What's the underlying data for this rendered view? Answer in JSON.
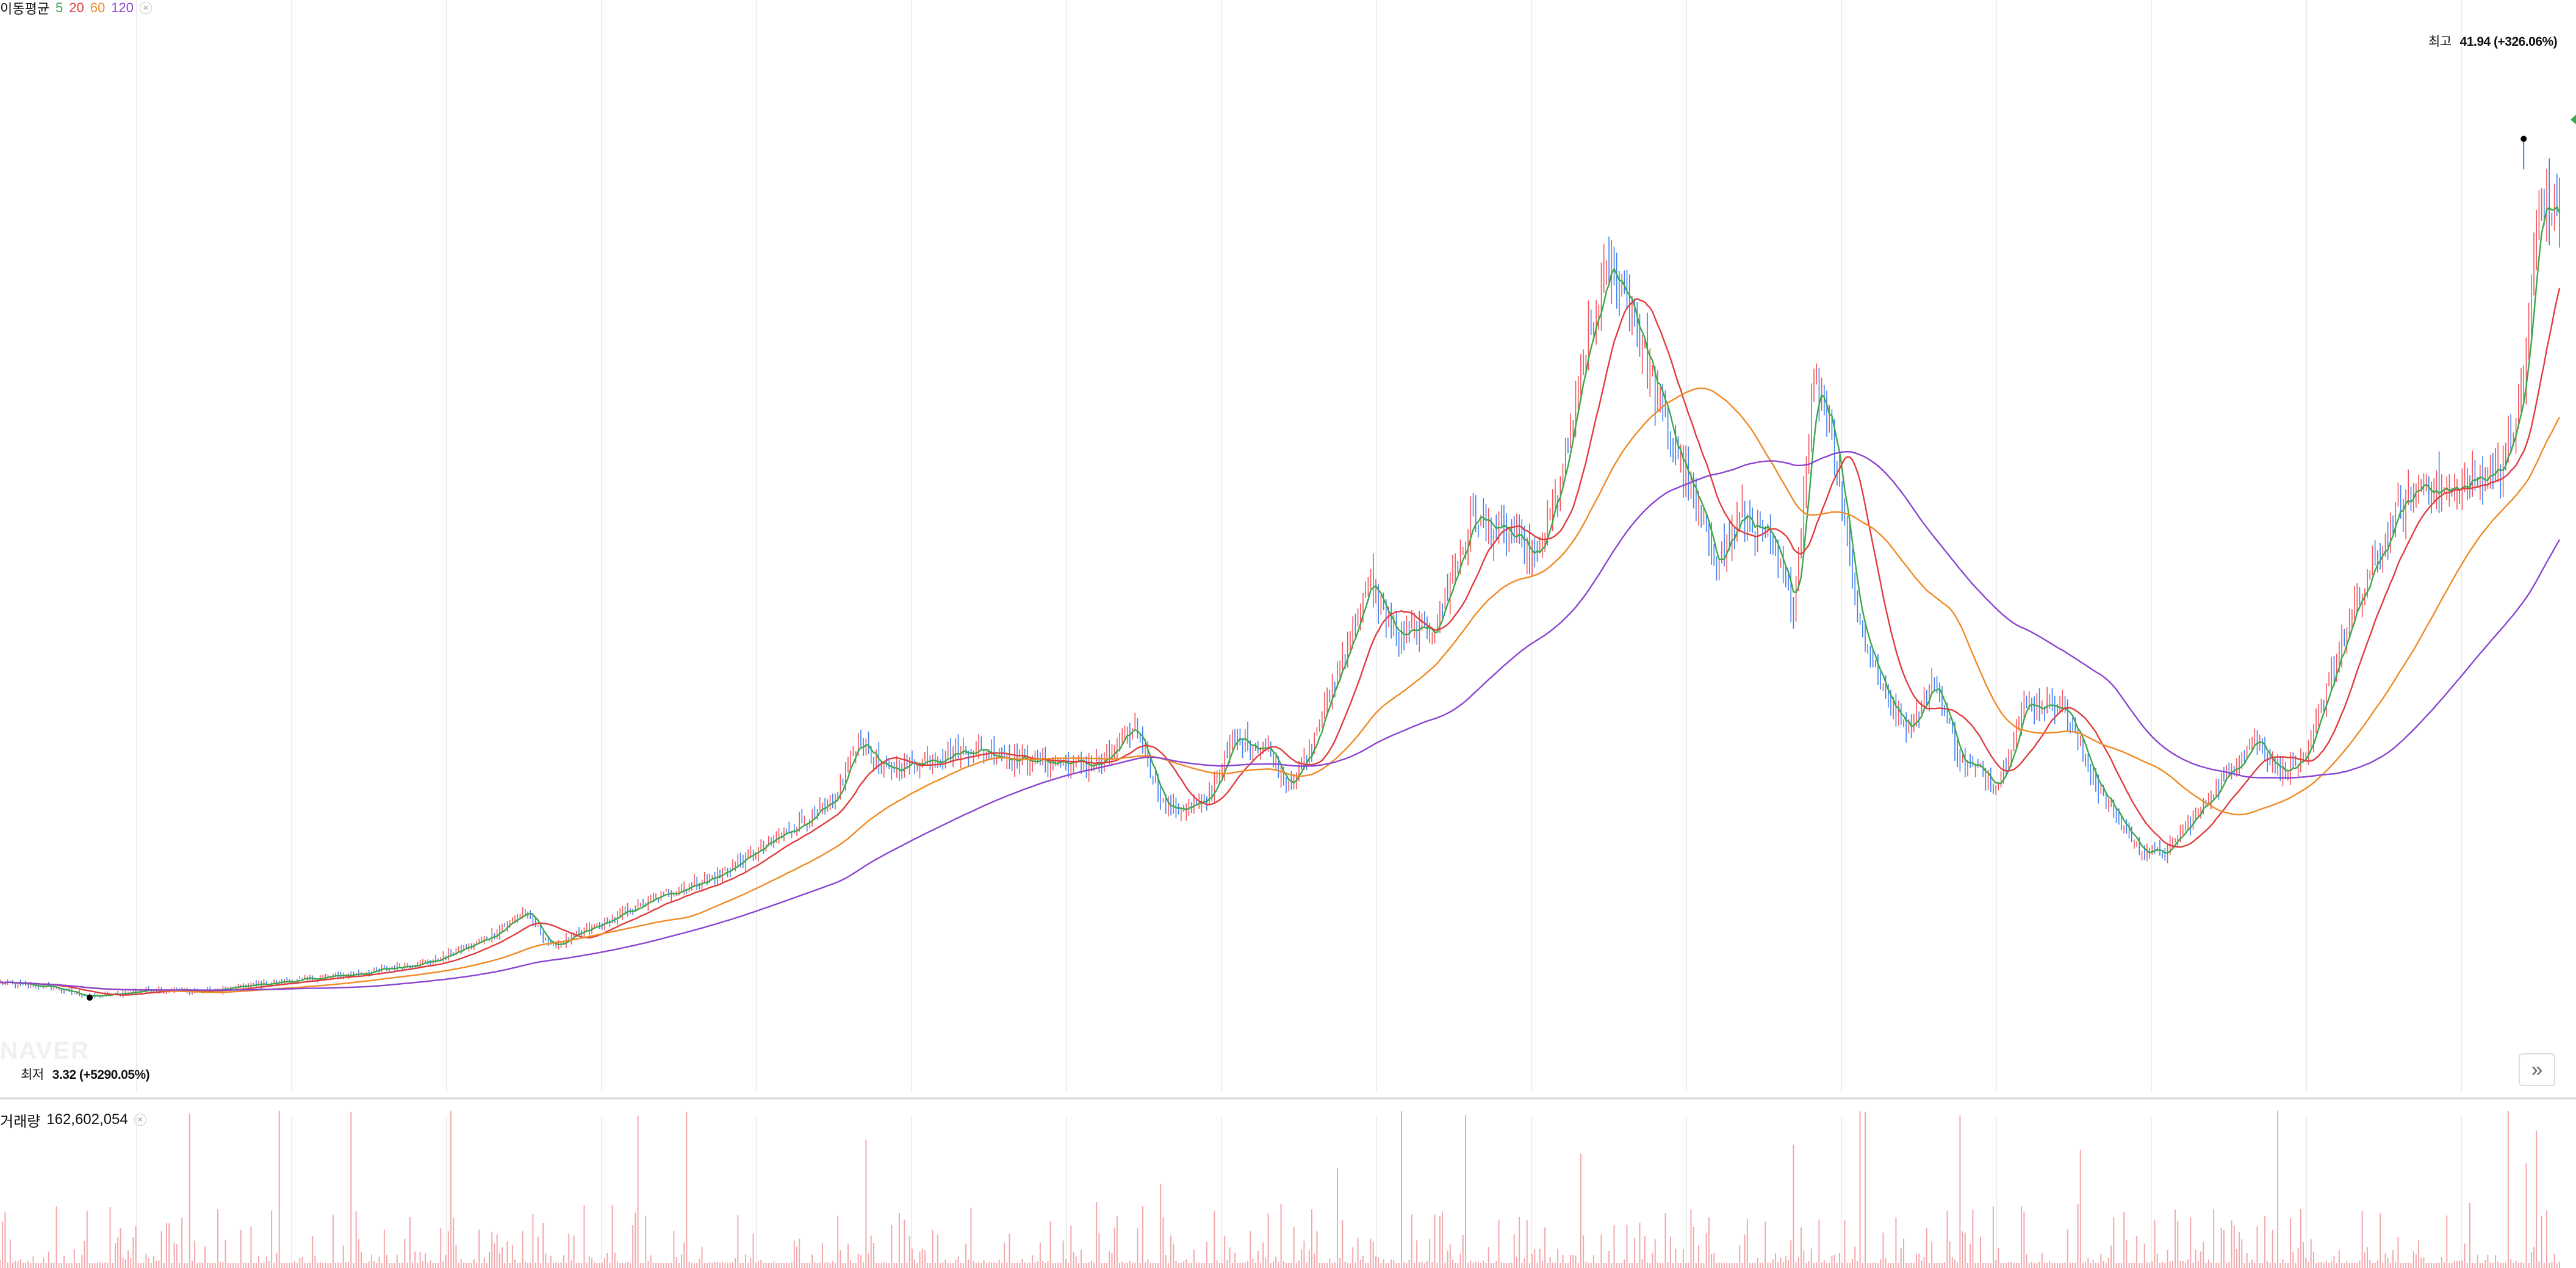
{
  "ma_legend": {
    "title": "이동평균",
    "periods": [
      {
        "label": "5",
        "color": "#3aa84a"
      },
      {
        "label": "20",
        "color": "#e03c3c"
      },
      {
        "label": "60",
        "color": "#f08a24"
      },
      {
        "label": "120",
        "color": "#8a44d0"
      }
    ],
    "close_icon": "close-icon"
  },
  "high_marker": {
    "tag": "최고",
    "value": "41.94 (+326.06%)"
  },
  "low_marker": {
    "tag": "최저",
    "value": "3.32 (+5290.05%)"
  },
  "volume_legend": {
    "title": "거래량",
    "value": "162,602,054",
    "close_icon": "close-icon"
  },
  "scroll_button": {
    "icon": "double-chevron-right-icon",
    "glyph": "»"
  },
  "colors": {
    "up": "#f2545b",
    "down": "#3d7ff0",
    "grid": "#eeeeee",
    "marker": "#000000"
  },
  "chart_data": {
    "type": "candlestick",
    "title": "",
    "xlabel": "",
    "ylabel": "",
    "grid": true,
    "ylim": [
      0,
      45
    ],
    "x_count": 1000,
    "price_anchors": [
      [
        0,
        4.0
      ],
      [
        20,
        3.8
      ],
      [
        35,
        3.32
      ],
      [
        60,
        3.7
      ],
      [
        80,
        3.6
      ],
      [
        100,
        3.9
      ],
      [
        140,
        4.4
      ],
      [
        170,
        5.0
      ],
      [
        190,
        6.0
      ],
      [
        205,
        7.2
      ],
      [
        215,
        5.6
      ],
      [
        230,
        6.4
      ],
      [
        260,
        8.0
      ],
      [
        280,
        8.8
      ],
      [
        310,
        11.0
      ],
      [
        325,
        12.0
      ],
      [
        335,
        15.0
      ],
      [
        345,
        13.5
      ],
      [
        360,
        14.0
      ],
      [
        380,
        14.5
      ],
      [
        400,
        14.0
      ],
      [
        430,
        13.8
      ],
      [
        443,
        15.5
      ],
      [
        455,
        11.8
      ],
      [
        470,
        12.0
      ],
      [
        482,
        15.0
      ],
      [
        495,
        14.5
      ],
      [
        502,
        13.0
      ],
      [
        510,
        14.0
      ],
      [
        525,
        19.0
      ],
      [
        535,
        22.0
      ],
      [
        545,
        19.5
      ],
      [
        560,
        20.0
      ],
      [
        575,
        25.0
      ],
      [
        590,
        24.0
      ],
      [
        600,
        23.0
      ],
      [
        610,
        27.0
      ],
      [
        620,
        33.0
      ],
      [
        628,
        36.0
      ],
      [
        635,
        35.0
      ],
      [
        645,
        31.0
      ],
      [
        660,
        26.0
      ],
      [
        670,
        23.0
      ],
      [
        680,
        25.0
      ],
      [
        690,
        24.0
      ],
      [
        700,
        21.0
      ],
      [
        708,
        31.0
      ],
      [
        715,
        29.0
      ],
      [
        725,
        20.5
      ],
      [
        735,
        17.0
      ],
      [
        745,
        15.5
      ],
      [
        755,
        17.5
      ],
      [
        765,
        14.0
      ],
      [
        780,
        13.0
      ],
      [
        790,
        16.5
      ],
      [
        805,
        16.5
      ],
      [
        820,
        12.5
      ],
      [
        835,
        10.0
      ],
      [
        845,
        9.8
      ],
      [
        860,
        12.0
      ],
      [
        870,
        13.5
      ],
      [
        880,
        15.0
      ],
      [
        890,
        13.5
      ],
      [
        900,
        14.0
      ],
      [
        910,
        18.0
      ],
      [
        920,
        21.0
      ],
      [
        935,
        25.0
      ],
      [
        945,
        26.5
      ],
      [
        955,
        26.0
      ],
      [
        965,
        26.5
      ],
      [
        978,
        27.5
      ],
      [
        985,
        31.0
      ],
      [
        988,
        35.5
      ],
      [
        992,
        39.5
      ],
      [
        995,
        38.5
      ],
      [
        1000,
        39.0
      ]
    ],
    "high": {
      "value": 41.94,
      "label": "41.94 (+326.06%)"
    },
    "low": {
      "value": 3.32,
      "label": "3.32 (+5290.05%)"
    },
    "moving_averages": [
      {
        "period": 5,
        "color": "#3aa84a"
      },
      {
        "period": 20,
        "color": "#e03c3c"
      },
      {
        "period": 60,
        "color": "#f08a24"
      },
      {
        "period": 120,
        "color": "#8a44d0"
      }
    ],
    "volume": {
      "last_value": 162602054
    }
  }
}
